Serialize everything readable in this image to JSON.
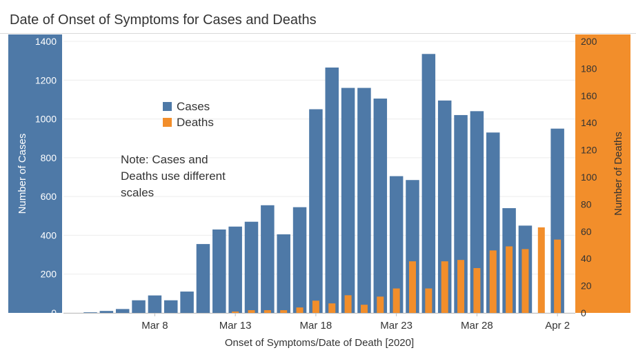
{
  "chart_data": {
    "type": "bar",
    "title": "Date of Onset of Symptoms for Cases and Deaths",
    "xlabel": "Onset of Symptoms/Date of Death [2020]",
    "ylabel_left": "Number of Cases",
    "ylabel_right": "Number of Deaths",
    "ylim_left": [
      0,
      1400
    ],
    "ylim_right": [
      0,
      200
    ],
    "yticks_left": [
      0,
      200,
      400,
      600,
      800,
      1000,
      1200,
      1400
    ],
    "yticks_right": [
      0,
      20,
      40,
      60,
      80,
      100,
      120,
      140,
      160,
      180,
      200
    ],
    "categories": [
      "Mar 4",
      "Mar 5",
      "Mar 6",
      "Mar 7",
      "Mar 8",
      "Mar 9",
      "Mar 10",
      "Mar 11",
      "Mar 12",
      "Mar 13",
      "Mar 14",
      "Mar 15",
      "Mar 16",
      "Mar 17",
      "Mar 18",
      "Mar 19",
      "Mar 20",
      "Mar 21",
      "Mar 22",
      "Mar 23",
      "Mar 24",
      "Mar 25",
      "Mar 26",
      "Mar 27",
      "Mar 28",
      "Mar 29",
      "Mar 30",
      "Mar 31",
      "Apr 1",
      "Apr 2"
    ],
    "x_tick_labels": [
      "Mar 8",
      "Mar 13",
      "Mar 18",
      "Mar 23",
      "Mar 28",
      "Apr 2"
    ],
    "series": [
      {
        "name": "Cases",
        "axis": "left",
        "color": "#4e79a7",
        "values": [
          3,
          10,
          20,
          65,
          90,
          65,
          110,
          355,
          430,
          445,
          470,
          555,
          405,
          545,
          1050,
          1265,
          1160,
          1160,
          1105,
          705,
          685,
          1335,
          1095,
          1020,
          1040,
          930,
          540,
          450,
          0,
          950
        ]
      },
      {
        "name": "Deaths",
        "axis": "right",
        "color": "#f28e2b",
        "values": [
          0,
          0,
          0,
          0,
          0,
          0,
          0,
          0,
          0,
          1,
          2,
          2,
          2,
          4,
          9,
          7,
          13,
          6,
          12,
          18,
          38,
          18,
          38,
          39,
          33,
          46,
          49,
          47,
          63,
          54
        ]
      }
    ],
    "legend": {
      "position": "top-left",
      "entries": [
        "Cases",
        "Deaths"
      ]
    },
    "annotation": "Note: Cases and Deaths use different scales",
    "grid": true
  }
}
